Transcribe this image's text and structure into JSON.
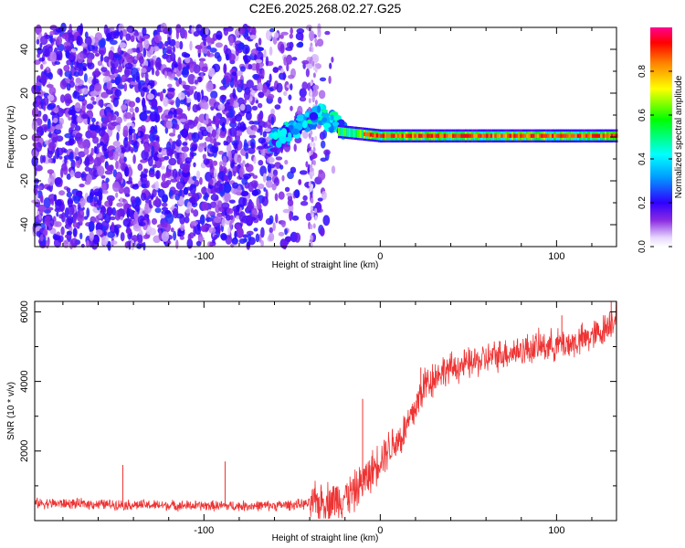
{
  "figure": {
    "title": "C2E6.2025.268.02.27.G25"
  },
  "chart_data": [
    {
      "type": "heatmap",
      "name": "spectrogram",
      "xlabel": "Height of straight line (km)",
      "ylabel": "Frequency (Hz)",
      "xlim": [
        -196,
        134
      ],
      "ylim": [
        -50,
        50
      ],
      "xticks": [
        -100,
        0,
        100
      ],
      "yticks": [
        -40,
        -20,
        0,
        20,
        40
      ],
      "colorbar": {
        "label": "Normalized spectral amplitude",
        "range": [
          0,
          1
        ],
        "ticks": [
          "0.0",
          "0.2",
          "0.4",
          "0.6",
          "0.8"
        ],
        "tick_values": [
          0.0,
          0.2,
          0.4,
          0.6,
          0.8
        ]
      },
      "description_points": [
        {
          "x": -196,
          "amplitude": "noise-dominated, 0.1-0.3 over full band"
        },
        {
          "x": -60,
          "amplitude": "noise fades, signal emerges near 0 to 10 Hz"
        },
        {
          "x": -35,
          "peak_frequency": 12
        },
        {
          "x": -20,
          "peak_frequency": 3
        },
        {
          "x": 0,
          "peak_frequency": 0
        },
        {
          "x": 134,
          "peak_frequency": 0
        }
      ]
    },
    {
      "type": "line",
      "name": "snr",
      "xlabel": "Height of straight line (km)",
      "ylabel": "SNR (10 * v/v)",
      "xlim": [
        -196,
        134
      ],
      "ylim": [
        0,
        6300
      ],
      "xticks": [
        -100,
        0,
        100
      ],
      "yticks": [
        2000,
        4000,
        6000
      ],
      "color": "#ee3333",
      "series": [
        {
          "name": "SNR",
          "x": [
            -196,
            -170,
            -140,
            -110,
            -80,
            -60,
            -40,
            -25,
            -15,
            -5,
            0,
            5,
            12,
            18,
            25,
            35,
            50,
            70,
            90,
            110,
            125,
            134
          ],
          "values": [
            500,
            480,
            450,
            430,
            420,
            430,
            480,
            600,
            800,
            1400,
            1800,
            2100,
            2400,
            3000,
            3900,
            4300,
            4500,
            4800,
            5000,
            5100,
            5400,
            5900
          ]
        }
      ],
      "spikes": [
        {
          "x": -196,
          "value": 1700
        },
        {
          "x": -146,
          "value": 1600
        },
        {
          "x": -88,
          "value": 1700
        },
        {
          "x": -10,
          "value": 3500
        },
        {
          "x": 23,
          "value": 4400
        },
        {
          "x": 103,
          "value": 5900
        },
        {
          "x": 131,
          "value": 6300
        }
      ]
    }
  ]
}
